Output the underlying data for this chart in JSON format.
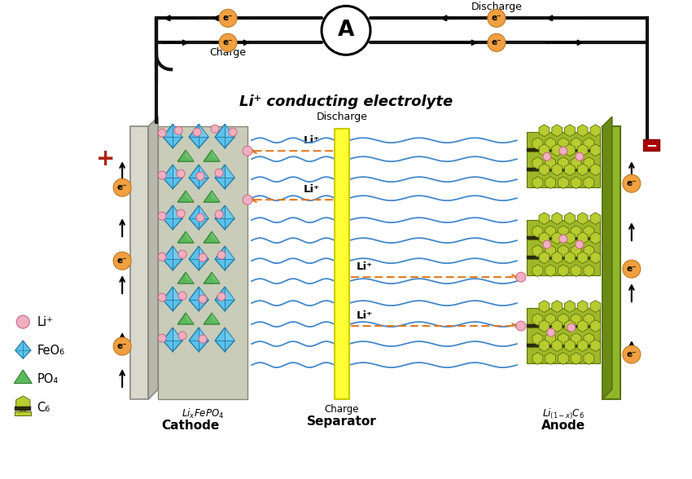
{
  "title": "Li⁺ conducting electrolyte",
  "cathode_label": "Cathode",
  "anode_label": "Anode",
  "separator_label": "Separator",
  "cathode_formula": "LiₓFePO₄",
  "discharge_label": "Discharge",
  "charge_label": "Charge",
  "li_color": "#f0b0c0",
  "feo_color": "#4db8e8",
  "po4_color": "#5cb85c",
  "c6_color": "#b8c832",
  "bg_color": "#ffffff",
  "cathode_plate_color": "#d8d8cc",
  "cathode_crystal_bg": "#c8cdb8",
  "anode_plate_color": "#8fb828",
  "separator_color": "#ffff44",
  "plus_color": "#aa2200",
  "minus_color": "#aa0000",
  "electron_bg": "#f0a040",
  "wave_color": "#4488cc",
  "li_arrow_color": "#e07820",
  "wire_color": "#111111"
}
